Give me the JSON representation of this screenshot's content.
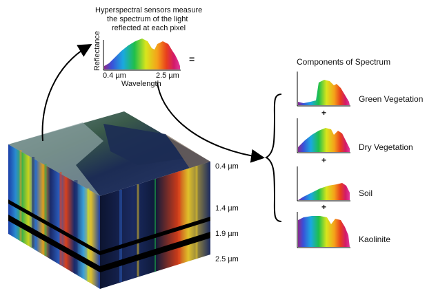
{
  "header": {
    "lines": [
      "Hyperspectral sensors measure",
      "the spectrum of the light",
      "reflected at each pixel"
    ]
  },
  "spectrum_plot": {
    "ylabel": "Reflectance",
    "xlabel": "Wavelength",
    "x_start": "0.4 µm",
    "x_end": "2.5 µm",
    "equals": "="
  },
  "cube": {
    "wavelengths": [
      "0.4 µm",
      "1.4 µm",
      "1.9 µm",
      "2.5 µm"
    ]
  },
  "components": {
    "title": "Components of Spectrum",
    "plus": "+",
    "items": [
      {
        "label": "Green Vegetation"
      },
      {
        "label": "Dry Vegetation"
      },
      {
        "label": "Soil"
      },
      {
        "label": "Kaolinite"
      }
    ]
  },
  "colors": {
    "spectrum": [
      "#7a2a8c",
      "#3a4fd8",
      "#1aa9e0",
      "#1fbf4a",
      "#d8e51c",
      "#f5a21a",
      "#e8401c",
      "#d21a6a",
      "#e03a9a"
    ],
    "cube_top_water": "#1c2c54",
    "cube_front_band": "#0e1a3a"
  }
}
